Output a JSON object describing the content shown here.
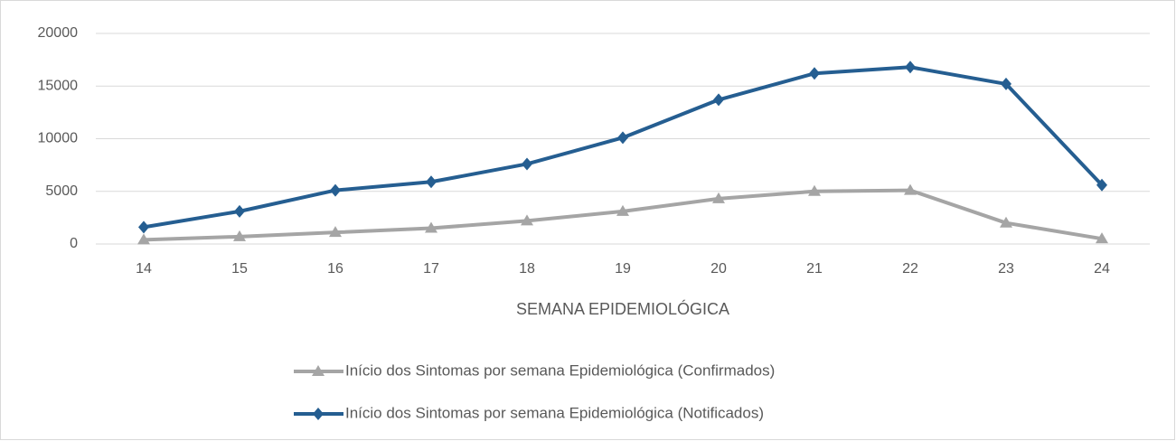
{
  "chart_data": {
    "type": "line",
    "xlabel": "SEMANA EPIDEMIOLÓGICA",
    "categories": [
      "14",
      "15",
      "16",
      "17",
      "18",
      "19",
      "20",
      "21",
      "22",
      "23",
      "24"
    ],
    "series": [
      {
        "name": "Início dos Sintomas por semana Epidemiológica (Confirmados)",
        "color": "#a5a5a5",
        "marker": "triangle",
        "values": [
          400,
          700,
          1100,
          1500,
          2200,
          3100,
          4300,
          5000,
          5100,
          2000,
          500
        ]
      },
      {
        "name": "Início dos Sintomas por semana Epidemiológica (Notificados)",
        "color": "#255e91",
        "marker": "diamond",
        "values": [
          1600,
          3100,
          5100,
          5900,
          7600,
          10100,
          13700,
          16200,
          16800,
          15200,
          5600
        ]
      }
    ],
    "ylim": [
      0,
      20000
    ],
    "yticks": [
      0,
      5000,
      10000,
      15000,
      20000
    ],
    "grid": true,
    "legend": "bottom"
  }
}
